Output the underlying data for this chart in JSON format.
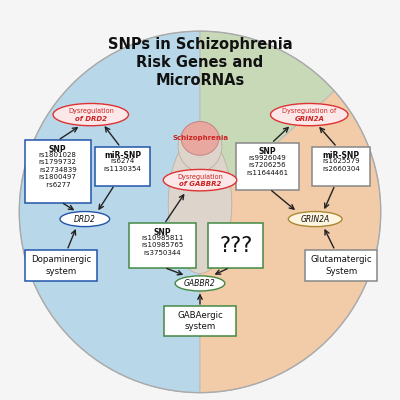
{
  "title": "SNPs in Schizophrenia\nRisk Genes and\nMicroRNAs",
  "title_fontsize": 10.5,
  "bg_color": "#f5f5f5",
  "sections": {
    "blue": "#b8d8ea",
    "peach": "#f2cba8",
    "green": "#c8d9b8"
  },
  "drd2_dysreg_line1": "Dysregulation",
  "drd2_dysreg_line2": "of DRD2",
  "grin2a_dysreg_line1": "Dysregulation of",
  "grin2a_dysreg_line2": "GRIN2A",
  "gabbr2_dysreg_line1": "Dysregulation",
  "gabbr2_dysreg_line2": "of GABBR2",
  "snp_drd2_title": "SNP",
  "snp_drd2_items": [
    "rs1801028",
    "rs1799732",
    "rs2734839",
    "rs1800497",
    " rs6277"
  ],
  "mirsnp_drd2_title": "miR-SNP",
  "mirsnp_drd2_items": [
    "rs6274",
    "rs1130354"
  ],
  "drd2_gene_label": "DRD2",
  "dopaminergic_label": "Dopaminergic\nsystem",
  "snp_grin2a_title": "SNP",
  "snp_grin2a_items": [
    "rs9926049",
    "rs7206256",
    "rs11644461"
  ],
  "mirsnp_grin2a_title": "miR-SNP",
  "mirsnp_grin2a_items": [
    "rs1625579",
    "rs2660304"
  ],
  "grin2a_gene_label": "GRIN2A",
  "glutamatergic_label": "Glutamatergic\nSystem",
  "snp_gabbr2_title": "SNP",
  "snp_gabbr2_items": [
    "rs10985811",
    "rs10985765",
    "rs3750344"
  ],
  "question_label": "???",
  "gabbr2_gene_label": "GABBR2",
  "gabaergic_label": "GABAergic\nsystem",
  "schizophrenia_label": "Schizophrenia",
  "red_text_color": "#cc2222",
  "box_border_blue": "#2255aa",
  "box_border_grey": "#888888",
  "box_border_green": "#448844",
  "box_border_tan": "#aa8833",
  "arrow_color": "#222222",
  "text_color": "#111111",
  "ellipse_dysreg_bg": "#fce8e8",
  "ellipse_dysreg_border": "#dd3333"
}
